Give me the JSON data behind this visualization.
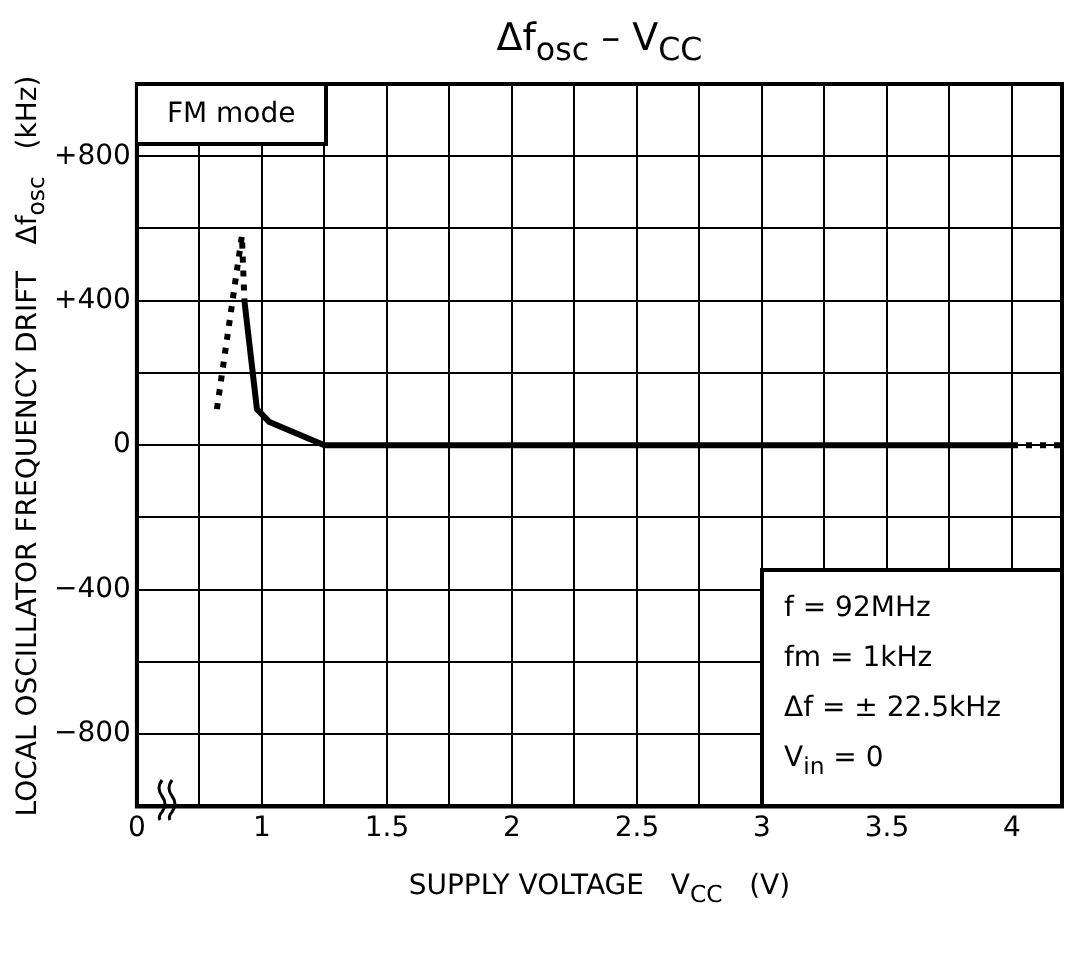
{
  "chart_data": {
    "type": "line",
    "title": "Δf$_{osc}$ – V$_{CC}$",
    "xlabel": "SUPPLY VOLTAGE   V$_{CC}$   (V)",
    "ylabel": "LOCAL OSCILLATOR FREQUENCY DRIFT   Δf$_{osc}$   (kHz)",
    "series": [
      {
        "color": "#000000",
        "line_style": "solid",
        "x": [
          0.93,
          0.98,
          1.03,
          1.25,
          4
        ],
        "values": [
          400,
          100,
          64,
          0,
          0
        ]
      },
      {
        "color": "#000000",
        "line_style": "dotted",
        "x": [
          0.82,
          0.92,
          0.93,
          2,
          4,
          4.2
        ],
        "values": [
          100,
          580,
          400,
          null,
          0,
          0
        ]
      }
    ],
    "xlim": [
      0.5,
      4.2
    ],
    "xticks": [
      {
        "value": 0.5,
        "label": "0"
      },
      {
        "value": 0.75,
        "label": null
      },
      1,
      {
        "value": 1.25,
        "label": null
      },
      1.5,
      {
        "value": 1.75,
        "label": null
      },
      2,
      {
        "value": 2.25,
        "label": null
      },
      2.5,
      {
        "value": 2.75,
        "label": null
      },
      3,
      {
        "value": 3.25,
        "label": null
      },
      3.5,
      {
        "value": 3.75,
        "label": null
      },
      4
    ],
    "ylim": [
      -1000,
      1000
    ],
    "yticks": [
      {
        "value": -1000,
        "label": null
      },
      {
        "value": -800,
        "label": "−800"
      },
      {
        "value": -600,
        "label": null
      },
      {
        "value": -400,
        "label": "−400"
      },
      {
        "value": -200,
        "label": null
      },
      0,
      {
        "value": 200,
        "label": null
      },
      {
        "value": 400,
        "label": "+400"
      },
      {
        "value": 600,
        "label": null
      },
      {
        "value": 800,
        "label": "+800"
      },
      {
        "value": 1000,
        "label": null
      }
    ],
    "grid": true,
    "marker": "none",
    "legend": false,
    "annotations": [
      "FM mode",
      "f = 92MHz",
      "fm = 1kHz",
      "Δf = ± 22.5kHz",
      "V$_{in}$ = 0"
    ]
  }
}
